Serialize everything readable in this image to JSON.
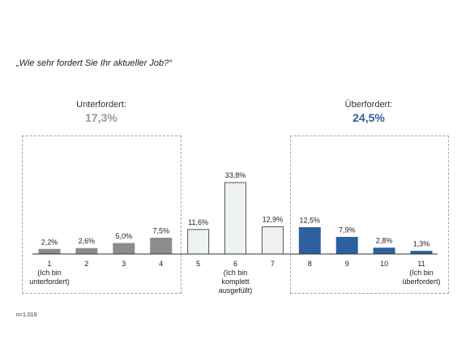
{
  "title": "„Wie sehr fordert Sie Ihr aktueller Job?“",
  "left_group": {
    "label": "Unterfordert:",
    "value": "17,3%"
  },
  "right_group": {
    "label": "Überfordert:",
    "value": "24,5%"
  },
  "note": "n=1.019",
  "colors": {
    "gray": "#8c8c8c",
    "light": "#eef2f3",
    "blue": "#2e5f9e",
    "outline": "#555555"
  },
  "chart_data": {
    "type": "bar",
    "categories": [
      "1",
      "2",
      "3",
      "4",
      "5",
      "6",
      "7",
      "8",
      "9",
      "10",
      "11"
    ],
    "category_sublabels": [
      [
        "(Ich bin",
        "unterfordert)"
      ],
      [],
      [],
      [],
      [],
      [
        "(Ich bin",
        "komplett",
        "ausgefüllt)"
      ],
      [],
      [],
      [],
      [],
      [
        "(Ich bin",
        "überfordert)"
      ]
    ],
    "values": [
      2.2,
      2.6,
      5.0,
      7.5,
      11.6,
      33.8,
      12.9,
      12.5,
      7.9,
      2.8,
      1.3
    ],
    "value_labels": [
      "2,2%",
      "2,6%",
      "5,0%",
      "7,5%",
      "11,6%",
      "33,8%",
      "12,9%",
      "12,5%",
      "7,9%",
      "2,8%",
      "1,3%"
    ],
    "bar_groups": [
      "gray",
      "gray",
      "gray",
      "gray",
      "light",
      "light",
      "light",
      "blue",
      "blue",
      "blue",
      "blue"
    ],
    "ylim": [
      0,
      35
    ],
    "grid": false
  }
}
